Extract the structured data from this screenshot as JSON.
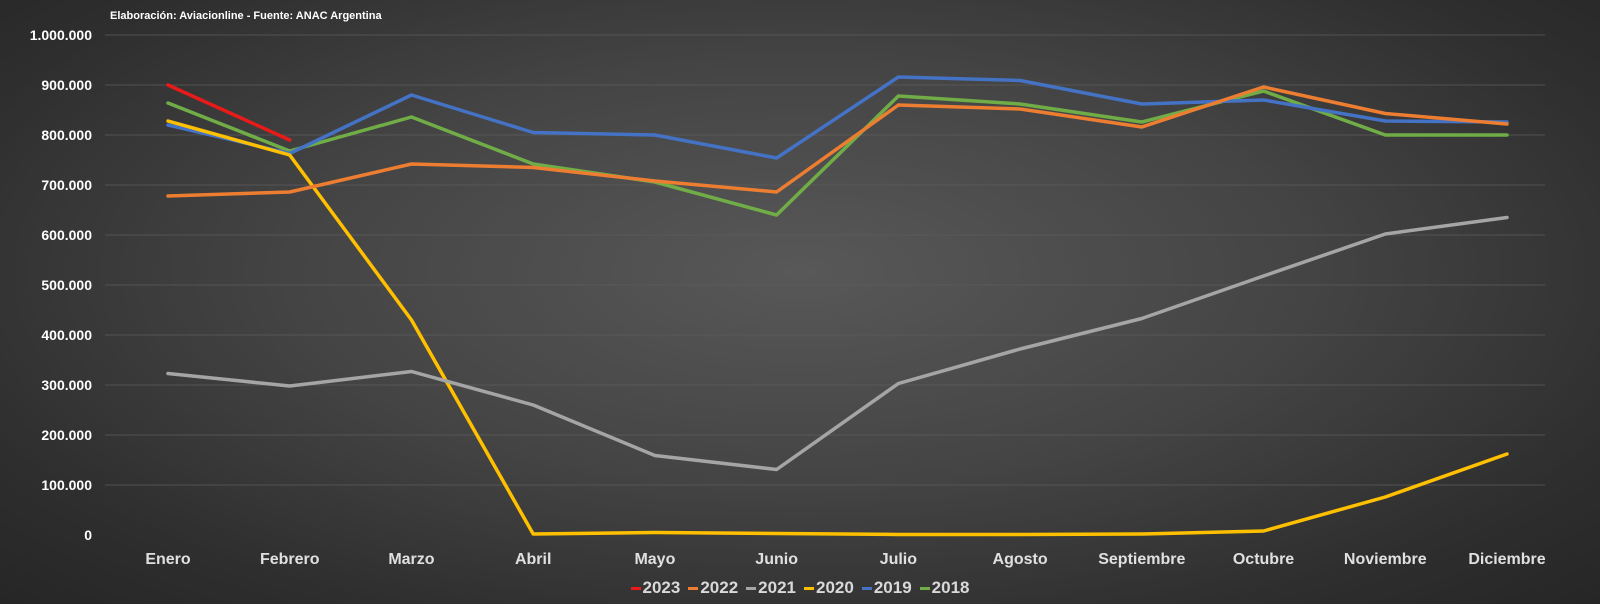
{
  "source_note": "Elaboración: Aviacionline - Fuente: ANAC Argentina",
  "chart_data": {
    "type": "line",
    "categories": [
      "Enero",
      "Febrero",
      "Marzo",
      "Abril",
      "Mayo",
      "Junio",
      "Julio",
      "Agosto",
      "Septiembre",
      "Octubre",
      "Noviembre",
      "Diciembre"
    ],
    "y_ticks": [
      "0",
      "100.000",
      "200.000",
      "300.000",
      "400.000",
      "500.000",
      "600.000",
      "700.000",
      "800.000",
      "900.000",
      "1.000.000"
    ],
    "ylim": [
      0,
      1000000
    ],
    "grid": true,
    "legend_position": "bottom",
    "series": [
      {
        "name": "2023",
        "color": "#e81a1a",
        "values": [
          900000,
          790000,
          null,
          null,
          null,
          null,
          null,
          null,
          null,
          null,
          null,
          null
        ]
      },
      {
        "name": "2022",
        "color": "#ed7d31",
        "values": [
          678000,
          686000,
          742000,
          735000,
          708000,
          686000,
          860000,
          852000,
          816000,
          896000,
          843000,
          822000
        ]
      },
      {
        "name": "2021",
        "color": "#a5a5a5",
        "values": [
          323000,
          298000,
          327000,
          260000,
          159000,
          131000,
          303000,
          372000,
          433000,
          518000,
          602000,
          635000
        ]
      },
      {
        "name": "2020",
        "color": "#ffc000",
        "values": [
          828000,
          760000,
          430000,
          2000,
          5000,
          3000,
          1000,
          1000,
          2000,
          8000,
          76000,
          162000
        ]
      },
      {
        "name": "2019",
        "color": "#4472c4",
        "values": [
          820000,
          763000,
          880000,
          805000,
          800000,
          754000,
          916000,
          909000,
          862000,
          870000,
          828000,
          826000
        ]
      },
      {
        "name": "2018",
        "color": "#70ad47",
        "values": [
          864000,
          768000,
          836000,
          742000,
          706000,
          640000,
          878000,
          862000,
          826000,
          888000,
          800000,
          800000
        ]
      }
    ]
  }
}
